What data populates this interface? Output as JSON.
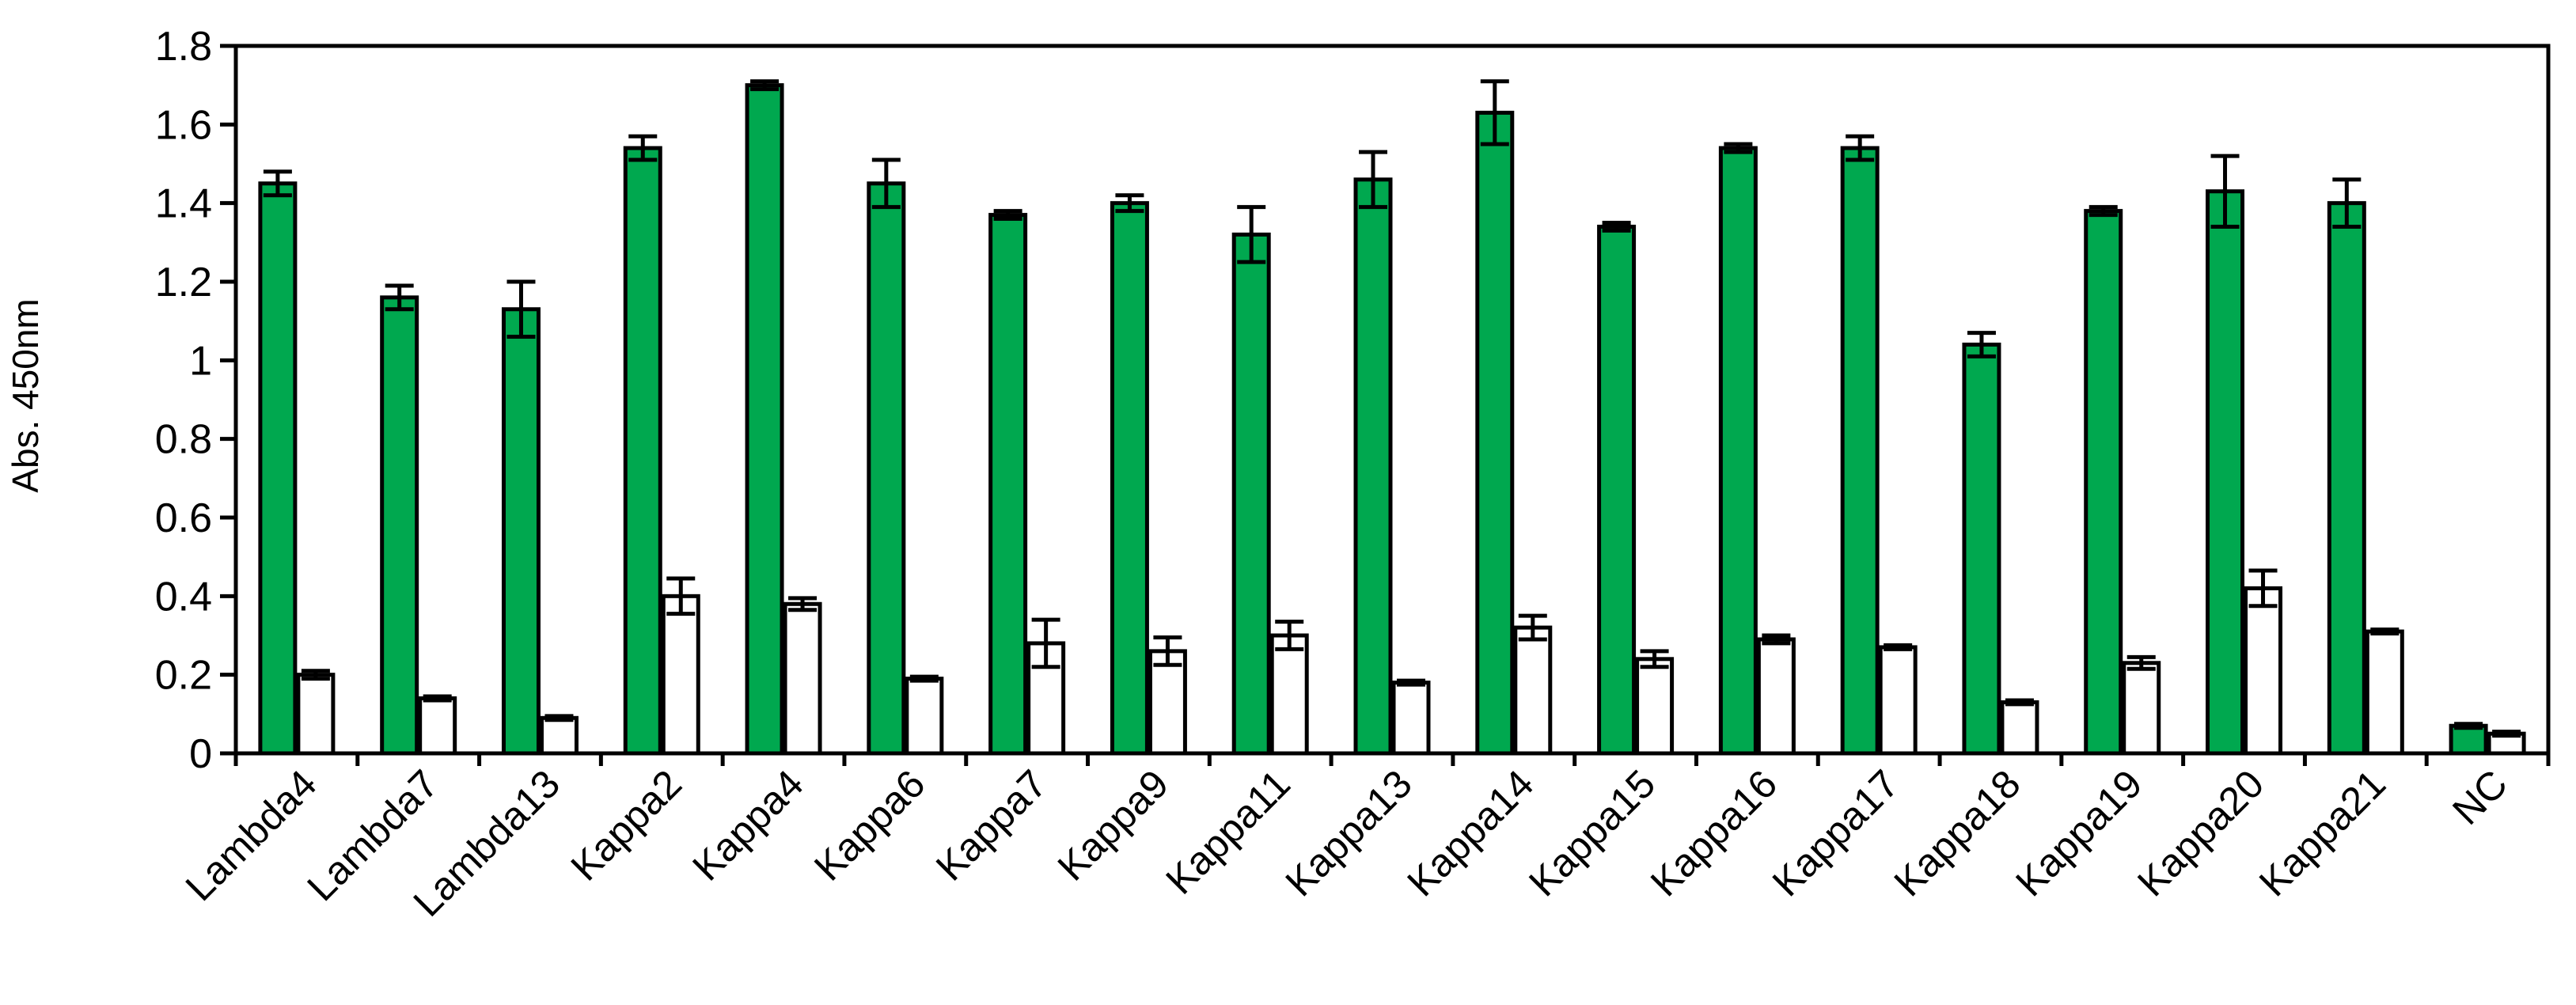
{
  "chart_data": {
    "type": "bar",
    "title": "",
    "xlabel": "",
    "ylabel": "Abs. 450nm",
    "ylim": [
      0,
      1.8
    ],
    "yticks": [
      "0",
      "0.2",
      "0.4",
      "0.6",
      "0.8",
      "1",
      "1.2",
      "1.4",
      "1.6",
      "1.8"
    ],
    "grid": false,
    "legend": "none",
    "categories": [
      "Lambda4",
      "Lambda7",
      "Lambda13",
      "Kappa2",
      "Kappa4",
      "Kappa6",
      "Kappa7",
      "Kappa9",
      "Kappa11",
      "Kappa13",
      "Kappa14",
      "Kappa15",
      "Kappa16",
      "Kappa17",
      "Kappa18",
      "Kappa19",
      "Kappa20",
      "Kappa21",
      "NC"
    ],
    "series": [
      {
        "color": "#00a84f",
        "values": [
          1.45,
          1.16,
          1.13,
          1.54,
          1.7,
          1.45,
          1.37,
          1.4,
          1.32,
          1.46,
          1.63,
          1.34,
          1.54,
          1.54,
          1.04,
          1.38,
          1.43,
          1.4,
          0.07
        ],
        "errors": [
          0.03,
          0.03,
          0.07,
          0.03,
          0.01,
          0.06,
          0.01,
          0.02,
          0.07,
          0.07,
          0.08,
          0.01,
          0.01,
          0.03,
          0.03,
          0.01,
          0.09,
          0.06,
          0.005
        ]
      },
      {
        "color": "#ffffff",
        "values": [
          0.2,
          0.14,
          0.09,
          0.4,
          0.38,
          0.19,
          0.28,
          0.26,
          0.3,
          0.18,
          0.32,
          0.24,
          0.29,
          0.27,
          0.13,
          0.23,
          0.42,
          0.31,
          0.05
        ],
        "errors": [
          0.01,
          0.005,
          0.005,
          0.045,
          0.015,
          0.005,
          0.06,
          0.035,
          0.035,
          0.005,
          0.03,
          0.02,
          0.01,
          0.005,
          0.005,
          0.015,
          0.045,
          0.005,
          0.005
        ]
      }
    ]
  }
}
